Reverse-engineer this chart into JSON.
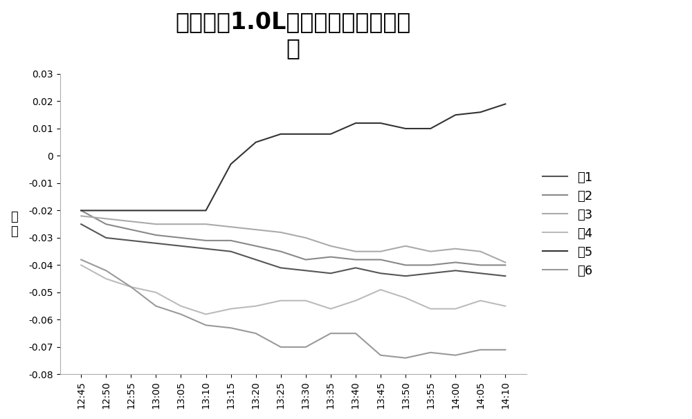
{
  "title_line1": "功率因素1.0L下误差随时间变化特",
  "title_line2": "性",
  "ylabel": "误\n差",
  "x_labels": [
    "12:45",
    "12:50",
    "12:55",
    "13:00",
    "13:05",
    "13:10",
    "13:15",
    "13:20",
    "13:25",
    "13:30",
    "13:35",
    "13:40",
    "13:45",
    "13:50",
    "13:55",
    "14:00",
    "14:05",
    "14:10"
  ],
  "ylim": [
    -0.08,
    0.03
  ],
  "yticks": [
    -0.08,
    -0.07,
    -0.06,
    -0.05,
    -0.04,
    -0.03,
    -0.02,
    -0.01,
    0,
    0.01,
    0.02,
    0.03
  ],
  "series": [
    {
      "name": "表1",
      "color": "#555555",
      "linewidth": 1.5,
      "values": [
        -0.025,
        -0.03,
        -0.031,
        -0.032,
        -0.033,
        -0.034,
        -0.035,
        -0.038,
        -0.041,
        -0.042,
        -0.043,
        -0.041,
        -0.043,
        -0.044,
        -0.043,
        -0.042,
        -0.043,
        -0.044
      ]
    },
    {
      "name": "表2",
      "color": "#888888",
      "linewidth": 1.5,
      "values": [
        -0.02,
        -0.025,
        -0.027,
        -0.029,
        -0.03,
        -0.031,
        -0.031,
        -0.033,
        -0.035,
        -0.038,
        -0.037,
        -0.038,
        -0.038,
        -0.04,
        -0.04,
        -0.039,
        -0.04,
        -0.04
      ]
    },
    {
      "name": "表3",
      "color": "#aaaaaa",
      "linewidth": 1.5,
      "values": [
        -0.022,
        -0.023,
        -0.024,
        -0.025,
        -0.025,
        -0.025,
        -0.026,
        -0.027,
        -0.028,
        -0.03,
        -0.033,
        -0.035,
        -0.035,
        -0.033,
        -0.035,
        -0.034,
        -0.035,
        -0.039
      ]
    },
    {
      "name": "表4",
      "color": "#bbbbbb",
      "linewidth": 1.5,
      "values": [
        -0.04,
        -0.045,
        -0.048,
        -0.05,
        -0.055,
        -0.058,
        -0.056,
        -0.055,
        -0.053,
        -0.053,
        -0.056,
        -0.053,
        -0.049,
        -0.052,
        -0.056,
        -0.056,
        -0.053,
        -0.055
      ]
    },
    {
      "name": "表5",
      "color": "#333333",
      "linewidth": 1.5,
      "values": [
        -0.02,
        -0.02,
        -0.02,
        -0.02,
        -0.02,
        -0.02,
        -0.003,
        0.005,
        0.008,
        0.008,
        0.008,
        0.012,
        0.012,
        0.01,
        0.01,
        0.015,
        0.016,
        0.019
      ]
    },
    {
      "name": "表6",
      "color": "#999999",
      "linewidth": 1.5,
      "values": [
        -0.038,
        -0.042,
        -0.048,
        -0.055,
        -0.058,
        -0.062,
        -0.063,
        -0.065,
        -0.07,
        -0.07,
        -0.065,
        -0.065,
        -0.073,
        -0.074,
        -0.072,
        -0.073,
        -0.071,
        -0.071
      ]
    }
  ],
  "background_color": "#ffffff",
  "plot_bg_color": "#ffffff",
  "title_fontsize": 24,
  "tick_fontsize": 10,
  "legend_fontsize": 13
}
